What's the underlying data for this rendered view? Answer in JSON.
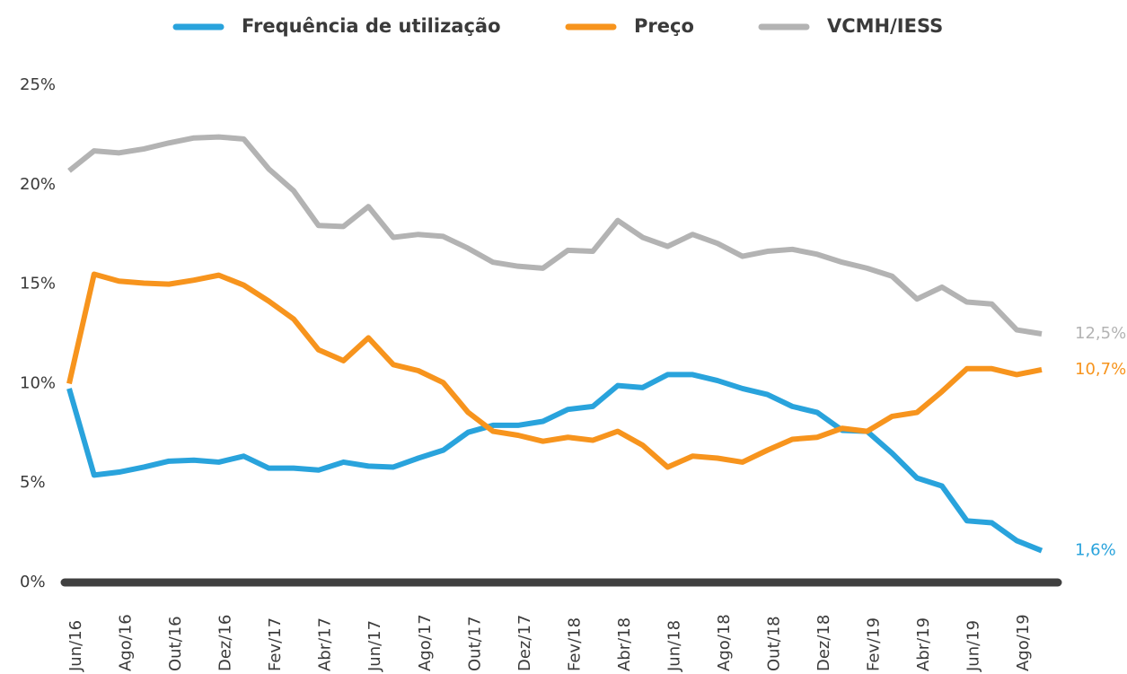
{
  "chart_data": {
    "type": "line",
    "categories": [
      "Jun/16",
      null,
      "Ago/16",
      null,
      "Out/16",
      null,
      "Dez/16",
      null,
      "Fev/17",
      null,
      "Abr/17",
      null,
      "Jun/17",
      null,
      "Ago/17",
      null,
      "Out/17",
      null,
      "Dez/17",
      null,
      "Fev/18",
      null,
      "Abr/18",
      null,
      "Jun/18",
      null,
      "Ago/18",
      null,
      "Out/18",
      null,
      "Dez/18",
      null,
      "Fev/19",
      null,
      "Abr/19",
      null,
      "Jun/19",
      null,
      "Ago/19",
      null
    ],
    "series": [
      {
        "name": "Frequência de utilização",
        "color": "#29a3dc",
        "end_label": "1,6%",
        "values": [
          9.75,
          5.4,
          5.55,
          5.8,
          6.1,
          6.15,
          6.05,
          6.35,
          5.75,
          5.75,
          5.65,
          6.05,
          5.85,
          5.8,
          6.25,
          6.65,
          7.55,
          7.9,
          7.9,
          8.1,
          8.7,
          8.85,
          9.9,
          9.8,
          10.45,
          10.45,
          10.15,
          9.75,
          9.45,
          8.85,
          8.55,
          7.65,
          7.6,
          6.5,
          5.25,
          4.85,
          3.1,
          3.0,
          2.1,
          1.6
        ]
      },
      {
        "name": "Preço",
        "color": "#f7941d",
        "end_label": "10,7%",
        "values": [
          10.0,
          15.5,
          15.15,
          15.05,
          15.0,
          15.2,
          15.45,
          14.95,
          14.15,
          13.25,
          11.7,
          11.15,
          12.3,
          10.95,
          10.65,
          10.05,
          8.55,
          7.6,
          7.4,
          7.1,
          7.3,
          7.15,
          7.6,
          6.9,
          5.8,
          6.35,
          6.25,
          6.05,
          6.65,
          7.2,
          7.3,
          7.75,
          7.6,
          8.35,
          8.55,
          9.6,
          10.75,
          10.75,
          10.45,
          10.7
        ]
      },
      {
        "name": "VCMH/IESS",
        "color": "#b3b3b3",
        "end_label": "12,5%",
        "values": [
          20.7,
          21.7,
          21.6,
          21.8,
          22.1,
          22.35,
          22.4,
          22.3,
          20.8,
          19.7,
          17.95,
          17.9,
          18.9,
          17.35,
          17.5,
          17.4,
          16.8,
          16.1,
          15.9,
          15.8,
          16.7,
          16.65,
          18.2,
          17.35,
          16.9,
          17.5,
          17.05,
          16.4,
          16.65,
          16.75,
          16.5,
          16.1,
          15.8,
          15.4,
          14.25,
          14.85,
          14.1,
          14.0,
          12.7,
          12.5
        ]
      }
    ],
    "ylim": [
      0,
      25
    ],
    "yticks": [
      {
        "value": 0,
        "label": "0%"
      },
      {
        "value": 5,
        "label": "5%"
      },
      {
        "value": 10,
        "label": "10%"
      },
      {
        "value": 15,
        "label": "15%"
      },
      {
        "value": 20,
        "label": "20%"
      },
      {
        "value": 25,
        "label": "25%"
      }
    ],
    "grid": false
  }
}
